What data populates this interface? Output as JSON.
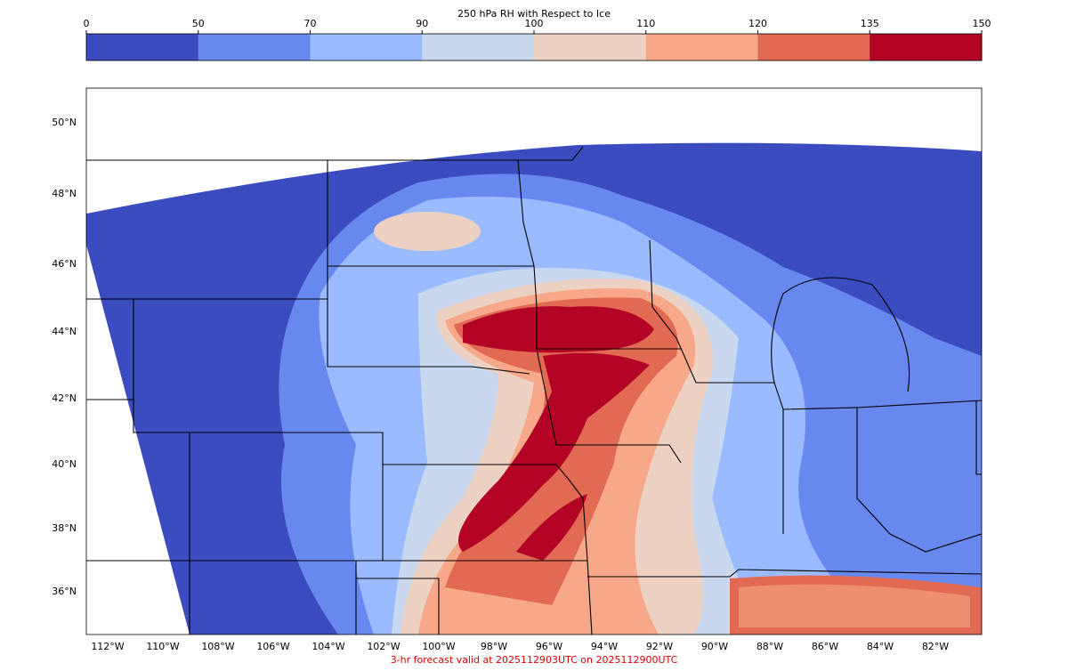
{
  "title": "250 hPa RH with Respect to Ice",
  "colorbar": {
    "ticks": [
      0,
      50,
      70,
      90,
      100,
      110,
      120,
      135,
      150
    ],
    "colors": [
      "#3b4cc0",
      "#6788ee",
      "#9abbff",
      "#c9d7ef",
      "#edd1c2",
      "#f7a889",
      "#e26952",
      "#b40426"
    ]
  },
  "latitude_labels": [
    "50°N",
    "48°N",
    "46°N",
    "44°N",
    "42°N",
    "40°N",
    "38°N",
    "36°N"
  ],
  "longitude_labels": [
    "112°W",
    "110°W",
    "108°W",
    "106°W",
    "104°W",
    "102°W",
    "100°W",
    "98°W",
    "96°W",
    "94°W",
    "92°W",
    "90°W",
    "88°W",
    "86°W",
    "84°W",
    "82°W"
  ],
  "footer": "3-hr forecast valid at 2025112903UTC on 2025112900UTC"
}
